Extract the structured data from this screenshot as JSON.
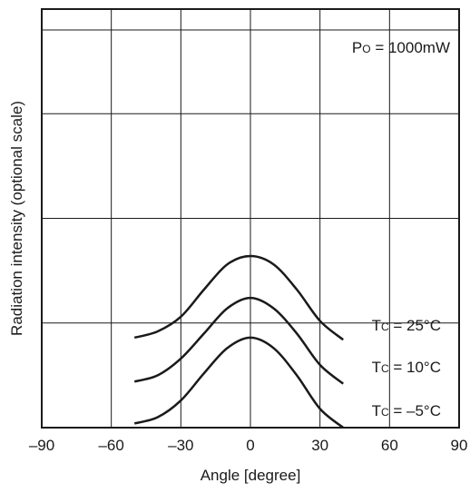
{
  "chart_data": {
    "type": "line",
    "xlabel": "Angle [degree]",
    "ylabel": "Radiation intensity (optional scale)",
    "xlim": [
      -90,
      90
    ],
    "xticks": [
      -90,
      -60,
      -30,
      0,
      30,
      60,
      90
    ],
    "xtick_labels": [
      "–90",
      "–60",
      "–30",
      "0",
      "30",
      "60",
      "90"
    ],
    "ylim": [
      0,
      1
    ],
    "y_tick_labels_shown": false,
    "grid": true,
    "annotation": {
      "main": "P",
      "sub": "O",
      "rest": " = 1000mW"
    },
    "series": [
      {
        "name": "Tc = 25°C",
        "label": {
          "main": "T",
          "sub": "C",
          "rest": " = 25°C"
        },
        "x": [
          -50,
          -40,
          -30,
          -20,
          -10,
          0,
          10,
          20,
          30,
          40
        ],
        "y": [
          0.215,
          0.23,
          0.265,
          0.33,
          0.39,
          0.41,
          0.39,
          0.33,
          0.255,
          0.21
        ]
      },
      {
        "name": "Tc = 10°C",
        "label": {
          "main": "T",
          "sub": "C",
          "rest": " = 10°C"
        },
        "x": [
          -50,
          -40,
          -30,
          -20,
          -10,
          0,
          10,
          20,
          30,
          40
        ],
        "y": [
          0.11,
          0.125,
          0.165,
          0.225,
          0.285,
          0.31,
          0.285,
          0.225,
          0.15,
          0.105
        ]
      },
      {
        "name": "Tc = –5°C",
        "label": {
          "main": "T",
          "sub": "C",
          "rest": " = –5°C"
        },
        "x": [
          -50,
          -40,
          -30,
          -20,
          -10,
          0,
          10,
          20,
          30,
          40
        ],
        "y": [
          0.01,
          0.025,
          0.065,
          0.13,
          0.19,
          0.215,
          0.19,
          0.125,
          0.045,
          0.0
        ]
      }
    ]
  }
}
